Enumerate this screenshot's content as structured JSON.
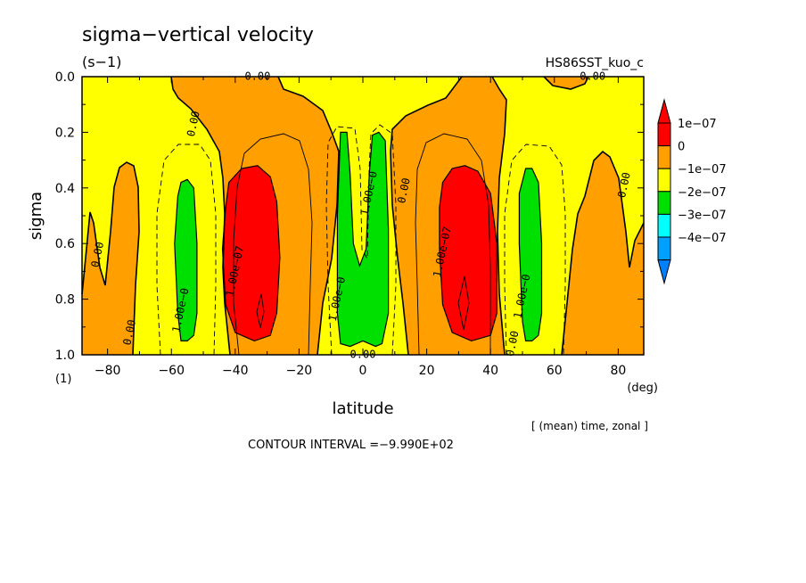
{
  "chart_data": {
    "type": "heatmap",
    "title": "sigma−vertical velocity",
    "units": "(s−1)",
    "run_label": "HS86SST_kuo_c",
    "xlabel": "latitude",
    "x_unit": "(deg)",
    "ylabel": "sigma",
    "y_unit": "(1)",
    "xlim": [
      -88,
      88
    ],
    "ylim": [
      0.0,
      1.0
    ],
    "y_inverted": true,
    "x_ticks": [
      -80,
      -60,
      -40,
      -20,
      0,
      20,
      40,
      60,
      80
    ],
    "x_tick_labels": [
      "−80",
      "−60",
      "−40",
      "−20",
      "0",
      "20",
      "40",
      "60",
      "80"
    ],
    "y_ticks": [
      0.0,
      0.2,
      0.4,
      0.6,
      0.8,
      1.0
    ],
    "y_tick_labels": [
      "0.0",
      "0.2",
      "0.4",
      "0.6",
      "0.8",
      "1.0"
    ],
    "averaging_note": "[ (mean) time, zonal ]",
    "contour_interval_text": "CONTOUR INTERVAL =−9.990E+02",
    "contour_labels": [
      {
        "text": "0.00",
        "x": -33,
        "y": 0.0
      },
      {
        "text": "0.00",
        "x": 72,
        "y": 0.0
      },
      {
        "text": "0.00",
        "x": -53,
        "y": 0.17
      },
      {
        "text": "0.00",
        "x": -83,
        "y": 0.64
      },
      {
        "text": "0.00",
        "x": -73,
        "y": 0.92
      },
      {
        "text": "1.00e−0",
        "x": -57,
        "y": 0.84
      },
      {
        "text": "1.00e−07",
        "x": -40,
        "y": 0.7
      },
      {
        "text": "1.00e−0",
        "x": -8,
        "y": 0.8
      },
      {
        "text": "1.00e−0",
        "x": 2,
        "y": 0.42
      },
      {
        "text": "0.00",
        "x": 13,
        "y": 0.41
      },
      {
        "text": "1.00e−07",
        "x": 25,
        "y": 0.63
      },
      {
        "text": "1.00e−0",
        "x": 50,
        "y": 0.79
      },
      {
        "text": "0.00",
        "x": 47,
        "y": 0.96
      },
      {
        "text": "0.00",
        "x": 0,
        "y": 1.0
      },
      {
        "text": "0.00",
        "x": 82,
        "y": 0.39
      }
    ],
    "colorbar": {
      "levels": [
        {
          "label": "1e−07",
          "color": "#ff0000"
        },
        {
          "label": "0",
          "color": "#ff9f00"
        },
        {
          "label": "−1e−07",
          "color": "#ffff00"
        },
        {
          "label": "−2e−07",
          "color": "#00e000"
        },
        {
          "label": "−3e−07",
          "color": "#00ffff"
        },
        {
          "label": "−4e−07",
          "color": "#00a0ff"
        }
      ],
      "top_color": "#ff0000",
      "bottom_color": "#0080ff"
    },
    "fill_regions": [
      {
        "name": "ascent-south-red",
        "color": "#ff0000",
        "poly": [
          [
            -42,
            0.38
          ],
          [
            -38,
            0.33
          ],
          [
            -33,
            0.32
          ],
          [
            -29,
            0.36
          ],
          [
            -27,
            0.45
          ],
          [
            -26,
            0.65
          ],
          [
            -27,
            0.85
          ],
          [
            -29,
            0.93
          ],
          [
            -34,
            0.95
          ],
          [
            -40,
            0.92
          ],
          [
            -43,
            0.82
          ],
          [
            -44,
            0.62
          ],
          [
            -43,
            0.47
          ]
        ]
      },
      {
        "name": "ascent-north-red",
        "color": "#ff0000",
        "poly": [
          [
            25,
            0.38
          ],
          [
            28,
            0.33
          ],
          [
            32,
            0.32
          ],
          [
            36,
            0.34
          ],
          [
            40,
            0.42
          ],
          [
            42,
            0.6
          ],
          [
            42,
            0.85
          ],
          [
            40,
            0.93
          ],
          [
            34,
            0.95
          ],
          [
            28,
            0.92
          ],
          [
            25,
            0.82
          ],
          [
            24,
            0.62
          ],
          [
            24,
            0.47
          ]
        ]
      },
      {
        "name": "descent-south-green",
        "color": "#00e000",
        "poly": [
          [
            -57,
            0.38
          ],
          [
            -55,
            0.37
          ],
          [
            -53,
            0.4
          ],
          [
            -52,
            0.6
          ],
          [
            -52,
            0.85
          ],
          [
            -53,
            0.93
          ],
          [
            -55,
            0.95
          ],
          [
            -57,
            0.95
          ],
          [
            -58,
            0.85
          ],
          [
            -59,
            0.6
          ],
          [
            -58,
            0.43
          ]
        ]
      },
      {
        "name": "descent-north-green",
        "color": "#00e000",
        "poly": [
          [
            51,
            0.33
          ],
          [
            53,
            0.33
          ],
          [
            55,
            0.38
          ],
          [
            56,
            0.6
          ],
          [
            56,
            0.85
          ],
          [
            55,
            0.93
          ],
          [
            53,
            0.95
          ],
          [
            51,
            0.95
          ],
          [
            50,
            0.88
          ],
          [
            49,
            0.6
          ],
          [
            49,
            0.42
          ]
        ]
      },
      {
        "name": "equatorial-green",
        "color": "#00e000",
        "poly": [
          [
            -7,
            0.2
          ],
          [
            -5,
            0.2
          ],
          [
            -4,
            0.35
          ],
          [
            -3,
            0.6
          ],
          [
            -1,
            0.68
          ],
          [
            1,
            0.62
          ],
          [
            2,
            0.35
          ],
          [
            3,
            0.21
          ],
          [
            5,
            0.2
          ],
          [
            7,
            0.23
          ],
          [
            8,
            0.55
          ],
          [
            8,
            0.85
          ],
          [
            6,
            0.96
          ],
          [
            4,
            0.97
          ],
          [
            0,
            0.95
          ],
          [
            -4,
            0.97
          ],
          [
            -7,
            0.96
          ],
          [
            -8,
            0.85
          ],
          [
            -8,
            0.5
          ]
        ]
      }
    ]
  }
}
